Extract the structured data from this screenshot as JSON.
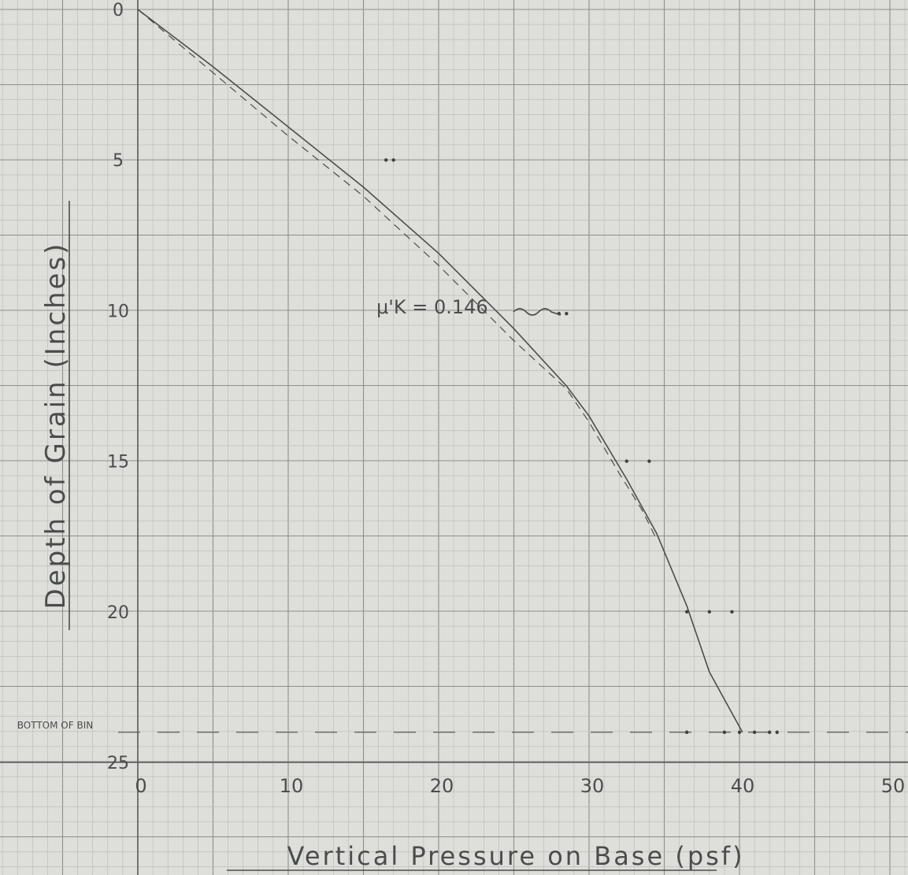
{
  "chart_data": {
    "type": "line",
    "xlabel": "Vertical Pressure on Base (psf)",
    "ylabel": "Depth of Grain (Inches)",
    "xlim": [
      0,
      50
    ],
    "ylim": [
      0,
      25
    ],
    "y_inverted": true,
    "grid": true,
    "x_ticks": [
      "0",
      "10",
      "20",
      "30",
      "40",
      "50"
    ],
    "y_ticks": [
      "0",
      "5",
      "10",
      "15",
      "20",
      "25"
    ],
    "annotation": "μ'K = 0.146",
    "reference_line": {
      "label": "BOTTOM OF BIN",
      "y": 24.0
    },
    "series": [
      {
        "style": "solid",
        "x": [
          0,
          5,
          10,
          15,
          20,
          25,
          28.5,
          30,
          32.5,
          34.5,
          36.5,
          38,
          40.2
        ],
        "y": [
          0,
          1.9,
          3.9,
          5.9,
          8.1,
          10.6,
          12.5,
          13.5,
          15.6,
          17.4,
          19.8,
          22.0,
          24.0
        ]
      },
      {
        "style": "dashed",
        "x": [
          0,
          5,
          10,
          15,
          20,
          25,
          28.5,
          30,
          32,
          33.5,
          34.5
        ],
        "y": [
          0,
          2.1,
          4.2,
          6.2,
          8.5,
          11.0,
          12.6,
          13.7,
          15.4,
          16.6,
          17.6
        ]
      },
      {
        "style": "points",
        "x": [
          16.5,
          17,
          28,
          28.5,
          32.5,
          34,
          36.5,
          38,
          39.5,
          36.5,
          39,
          40,
          41,
          42,
          42.5
        ],
        "y": [
          5.0,
          5.0,
          10.1,
          10.1,
          15.0,
          15.0,
          20.0,
          20.0,
          20.0,
          24.0,
          24.0,
          24.0,
          24.0,
          24.0,
          24.0
        ]
      }
    ]
  }
}
